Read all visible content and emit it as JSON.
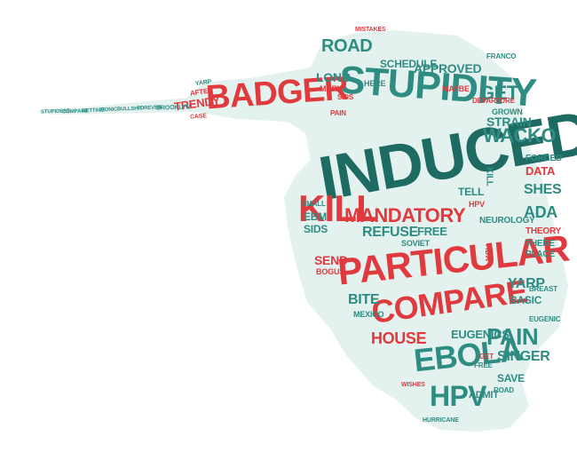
{
  "colors": {
    "background": "#ffffff",
    "shape_fill": "#e4f2ef",
    "teal": "#2e8c82",
    "dark_teal": "#1d6b62",
    "red": "#e03a3e"
  },
  "words": [
    {
      "key": "induced",
      "text": "INDUCED"
    },
    {
      "key": "stupidity",
      "text": "STUPIDITY"
    },
    {
      "key": "badger",
      "text": "BADGER"
    },
    {
      "key": "particular",
      "text": "PARTICULAR"
    },
    {
      "key": "compare",
      "text": "COMPARE"
    },
    {
      "key": "kill",
      "text": "KILL"
    },
    {
      "key": "ebola",
      "text": "EBOLA"
    },
    {
      "key": "hpv",
      "text": "HPV"
    },
    {
      "key": "mandatory",
      "text": "MANDATORY"
    },
    {
      "key": "road",
      "text": "ROAD"
    },
    {
      "key": "get",
      "text": "GET"
    },
    {
      "key": "wacko",
      "text": "WACKO"
    },
    {
      "key": "strain",
      "text": "STRAIN"
    },
    {
      "key": "pain",
      "text": "PAIN"
    },
    {
      "key": "refuse",
      "text": "REFUSE"
    },
    {
      "key": "house",
      "text": "HOUSE"
    },
    {
      "key": "ada",
      "text": "ADA"
    },
    {
      "key": "shes",
      "text": "SHES"
    },
    {
      "key": "data",
      "text": "DATA"
    },
    {
      "key": "yarp",
      "text": "YARP"
    },
    {
      "key": "singer",
      "text": "SINGER"
    },
    {
      "key": "eugenics",
      "text": "EUGENICS"
    },
    {
      "key": "trendy",
      "text": "TRENDY"
    },
    {
      "key": "schedule",
      "text": "SCHEDULE"
    },
    {
      "key": "approved",
      "text": "APPROVED"
    },
    {
      "key": "long",
      "text": "LONG"
    },
    {
      "key": "bite",
      "text": "BITE"
    },
    {
      "key": "send",
      "text": "SEND"
    },
    {
      "key": "free",
      "text": "FREE"
    },
    {
      "key": "neurology",
      "text": "NEUROLOGY"
    },
    {
      "key": "basic",
      "text": "BASIC"
    },
    {
      "key": "ebm",
      "text": "EBM"
    },
    {
      "key": "sids",
      "text": "SIDS"
    },
    {
      "key": "tell",
      "text": "TELL"
    },
    {
      "key": "theory",
      "text": "THEORY"
    },
    {
      "key": "forced",
      "text": "FORCED"
    },
    {
      "key": "there",
      "text": "THERE"
    },
    {
      "key": "place",
      "text": "PLACE"
    },
    {
      "key": "save",
      "text": "SAVE"
    },
    {
      "key": "admit",
      "text": "ADMIT"
    },
    {
      "key": "stupidest",
      "text": "STUPIDEST"
    },
    {
      "key": "compare_small",
      "text": "COMPARE"
    },
    {
      "key": "getting",
      "text": "GETTING"
    },
    {
      "key": "ironic",
      "text": "IRONIC"
    },
    {
      "key": "bullshit",
      "text": "BULLSHIT"
    },
    {
      "key": "forever",
      "text": "FOREVER"
    },
    {
      "key": "brooklyn",
      "text": "BROOKLYN"
    },
    {
      "key": "after",
      "text": "AFTER"
    },
    {
      "key": "yarp_small",
      "text": "YARP"
    },
    {
      "key": "case",
      "text": "CASE"
    },
    {
      "key": "mistakes",
      "text": "MISTAKES"
    },
    {
      "key": "here",
      "text": "HERE"
    },
    {
      "key": "maybe",
      "text": "MAYBE"
    },
    {
      "key": "departure",
      "text": "DEPARTURE"
    },
    {
      "key": "franco",
      "text": "FRANCO"
    },
    {
      "key": "mary",
      "text": "MARY"
    },
    {
      "key": "grown",
      "text": "GROWN"
    },
    {
      "key": "soviet",
      "text": "SOVIET"
    },
    {
      "key": "mexico",
      "text": "MEXICO"
    },
    {
      "key": "bogus",
      "text": "BOGUS"
    },
    {
      "key": "eugenic",
      "text": "EUGENIC"
    },
    {
      "key": "breast",
      "text": "BREAST"
    },
    {
      "key": "hurricane",
      "text": "HURRICANE"
    },
    {
      "key": "kill_small",
      "text": "KILL"
    },
    {
      "key": "small",
      "text": "SMALL"
    },
    {
      "key": "pain_small",
      "text": "PAIN"
    },
    {
      "key": "sids_small",
      "text": "SIDS"
    },
    {
      "key": "hpv_small",
      "text": "HPV"
    },
    {
      "key": "ada_small",
      "text": "ADA"
    },
    {
      "key": "get_small",
      "text": "GET"
    },
    {
      "key": "free_small",
      "text": "FREE"
    },
    {
      "key": "road_small",
      "text": "ROAD"
    },
    {
      "key": "wishes",
      "text": "WISHES"
    }
  ]
}
